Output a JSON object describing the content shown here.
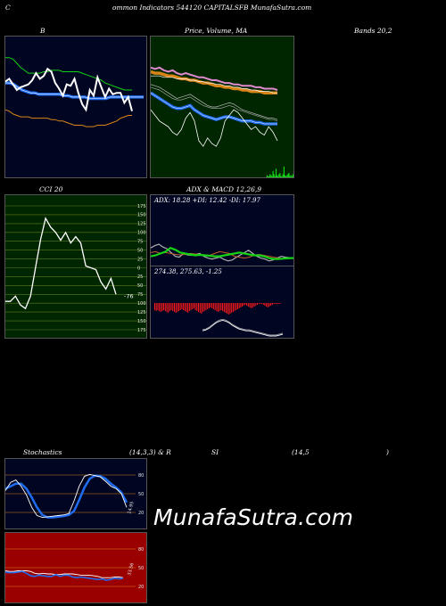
{
  "header": {
    "title_left": "C",
    "title_main": "ommon  Indicators 544120  CAPITALSFB MunafaSutra.com"
  },
  "watermark": "MunafaSutra.com",
  "titles": {
    "bollinger_b": "B",
    "price_volume": "Price,  Volume,  MA",
    "bands": "Bands 20,2",
    "cci": "CCI 20",
    "adx_macd": "ADX  & MACD 12,26,9",
    "stoch_a": "Stochastics",
    "stoch_b": "(14,3,3) & R",
    "rsi_a": "SI",
    "rsi_b": "(14,5",
    "rsi_c": ")"
  },
  "colors": {
    "navy": "#000522",
    "green_panel": "#002600",
    "grid_green": "#5e7a1d",
    "red_panel": "#9b0000",
    "blue": "#1f6cf0",
    "orange": "#d88416",
    "green_line": "#14d314",
    "white": "#ffffff"
  },
  "chart_data": [
    {
      "id": "bollinger",
      "type": "line",
      "title": "B",
      "series": [
        {
          "values": [
            68,
            70,
            66,
            62,
            64,
            65,
            66,
            69,
            74,
            70,
            72,
            77,
            75,
            67,
            63,
            58,
            66,
            65,
            70,
            60,
            52,
            48,
            62,
            58,
            71,
            64,
            57,
            63,
            59,
            60,
            60,
            53,
            57,
            47
          ]
        },
        {
          "values": [
            85,
            85,
            84,
            81,
            78,
            76,
            74,
            74,
            74,
            74,
            75,
            75,
            76,
            76,
            76,
            75,
            75,
            75,
            75,
            75,
            74,
            73,
            72,
            71,
            70,
            69,
            67,
            66,
            65,
            64,
            63,
            62,
            62,
            62
          ]
        },
        {
          "values": [
            67,
            67,
            66,
            64,
            62,
            61,
            60,
            60,
            59,
            59,
            59,
            59,
            59,
            59,
            58,
            58,
            57,
            57,
            57,
            57,
            56,
            56,
            56,
            56,
            56,
            57,
            57,
            57,
            57,
            57,
            57,
            57,
            57,
            57
          ]
        },
        {
          "values": [
            48,
            47,
            45,
            44,
            43,
            43,
            43,
            42,
            42,
            42,
            42,
            42,
            41,
            41,
            40,
            40,
            39,
            38,
            37,
            37,
            37,
            36,
            36,
            36,
            37,
            37,
            37,
            38,
            39,
            40,
            42,
            43,
            44,
            44
          ]
        }
      ]
    },
    {
      "id": "price_ma",
      "type": "line",
      "title": "Price,  Volume,  MA",
      "series": [
        {
          "values": [
            78,
            77,
            78,
            76,
            75,
            76,
            74,
            73,
            74,
            73,
            72,
            71,
            71,
            70,
            69,
            69,
            68,
            67,
            67,
            66,
            66,
            65,
            65,
            65,
            64,
            64,
            63,
            63,
            63,
            62
          ]
        },
        {
          "values": [
            75,
            74,
            74,
            73,
            72,
            72,
            71,
            70,
            70,
            69,
            69,
            68,
            67,
            67,
            66,
            65,
            65,
            64,
            64,
            63,
            63,
            62,
            62,
            61,
            61,
            61,
            60,
            60,
            60,
            60
          ]
        },
        {
          "values": [
            72,
            72,
            72,
            71,
            71,
            71,
            70,
            70,
            70,
            69,
            69,
            68,
            68,
            67,
            67,
            66,
            66,
            65,
            65,
            64,
            64,
            63,
            63,
            62,
            62,
            61,
            61,
            61,
            60,
            60
          ]
        },
        {
          "values": [
            60,
            58,
            56,
            54,
            52,
            50,
            49,
            49,
            50,
            51,
            48,
            46,
            44,
            43,
            42,
            41,
            42,
            43,
            43,
            42,
            41,
            40,
            40,
            40,
            39,
            39,
            38,
            38,
            38,
            38
          ]
        },
        {
          "values": [
            48,
            44,
            40,
            38,
            36,
            32,
            30,
            34,
            42,
            46,
            40,
            26,
            22,
            28,
            24,
            22,
            28,
            40,
            44,
            48,
            46,
            42,
            38,
            34,
            36,
            32,
            30,
            36,
            32,
            26
          ]
        },
        {
          "values": [
            66,
            65,
            64,
            62,
            60,
            58,
            56,
            57,
            58,
            59,
            57,
            55,
            53,
            51,
            50,
            50,
            51,
            52,
            53,
            52,
            50,
            48,
            47,
            46,
            45,
            44,
            43,
            42,
            42,
            41
          ]
        },
        {
          "values": [
            64,
            63,
            62,
            60,
            58,
            56,
            55,
            55,
            56,
            57,
            55,
            53,
            51,
            50,
            49,
            49,
            49,
            50,
            51,
            50,
            48,
            47,
            46,
            45,
            44,
            43,
            42,
            41,
            41,
            40
          ]
        }
      ],
      "volume": [
        0,
        0,
        0,
        0,
        0,
        0,
        0,
        0,
        0,
        0,
        0,
        0,
        0,
        0,
        0,
        0,
        0,
        0,
        0,
        0,
        0,
        0,
        0,
        0,
        0,
        0,
        0,
        0,
        0,
        0,
        0,
        0,
        0,
        0,
        0,
        0,
        0,
        0,
        0,
        0,
        0,
        0,
        0,
        0,
        0,
        0,
        0,
        0,
        0,
        0,
        0,
        0,
        0,
        0,
        0,
        0,
        0,
        0,
        0,
        0,
        0,
        0,
        0,
        0,
        0,
        0,
        0,
        0,
        0,
        0,
        0,
        0,
        0,
        0,
        0,
        0,
        0,
        0,
        0,
        0,
        0,
        0,
        0,
        0,
        0,
        0,
        0,
        0,
        0,
        0,
        0,
        0,
        0,
        0,
        0,
        0,
        0,
        0,
        0,
        0,
        0,
        0,
        0,
        0,
        0,
        0,
        0,
        0,
        0,
        0,
        0,
        0,
        0,
        0,
        0,
        0,
        2,
        1,
        1,
        3,
        2,
        1,
        6,
        3,
        1,
        8,
        2,
        1,
        3,
        4,
        1,
        1,
        3,
        10,
        2,
        1,
        2,
        3,
        4,
        1,
        2,
        1,
        3
      ]
    },
    {
      "id": "cci",
      "type": "line",
      "title": "CCI 20",
      "ylim": [
        -175,
        175
      ],
      "y_ticks": [
        175,
        150,
        125,
        100,
        75,
        50,
        25,
        0,
        -25,
        -50,
        -75,
        -100,
        -125,
        -150,
        -175
      ],
      "y_tick_labels": [
        "175",
        "150",
        "125",
        "100",
        "75",
        "50",
        "25",
        "0",
        "25",
        "50",
        "75",
        "100",
        "125",
        "150",
        "175"
      ],
      "last_label": "-76",
      "series": [
        {
          "values": [
            -95,
            -95,
            -80,
            -105,
            -115,
            -80,
            0,
            80,
            140,
            115,
            100,
            78,
            100,
            70,
            88,
            70,
            5,
            0,
            -5,
            -40,
            -60,
            -30,
            -75
          ]
        }
      ]
    },
    {
      "id": "adx",
      "type": "line",
      "title": "ADX  & MACD 12,26,9",
      "label": "ADX: 18.28  +DI: 12.42  -DI: 17.97",
      "series": [
        {
          "values": [
            40,
            45,
            48,
            42,
            38,
            30,
            22,
            20,
            28,
            25,
            24,
            26,
            28,
            22,
            18,
            16,
            18,
            20,
            15,
            12,
            14,
            20,
            25,
            30,
            35,
            28,
            22,
            18,
            16,
            12,
            14,
            18,
            22,
            20,
            19,
            18
          ]
        },
        {
          "values": [
            22,
            24,
            28,
            32,
            40,
            36,
            30,
            28,
            26,
            24,
            25,
            24,
            23,
            22,
            22,
            24,
            26,
            28,
            30,
            28,
            26,
            24,
            24,
            22,
            18,
            16,
            16,
            17,
            18,
            18
          ]
        },
        {
          "values": [
            30,
            32,
            28,
            30,
            28,
            26,
            25,
            26,
            28,
            27,
            26,
            25,
            24,
            28,
            32,
            30,
            28,
            22,
            20,
            18,
            20,
            24,
            26,
            24,
            22,
            20,
            18,
            17,
            17,
            18
          ]
        }
      ]
    },
    {
      "id": "macd",
      "type": "bar",
      "label": "274.38,  275.63,  -1.25",
      "series": [
        {
          "values": [
            8,
            9,
            8,
            9,
            10,
            9,
            8,
            9,
            10,
            11,
            9,
            8,
            9,
            10,
            11,
            10,
            9,
            8,
            7,
            8,
            9,
            10,
            11,
            9,
            8,
            7,
            6,
            8,
            9,
            10,
            11,
            12,
            10,
            9,
            8,
            7,
            6,
            5,
            6,
            7,
            8,
            9,
            10,
            9,
            8,
            9,
            10,
            11,
            12,
            13,
            12,
            11,
            10,
            9,
            8,
            7,
            6,
            5,
            4,
            3,
            2,
            3,
            4,
            5,
            6,
            5,
            4,
            3,
            2,
            1,
            1,
            1,
            2,
            3,
            4,
            5,
            4,
            3,
            2,
            1,
            1,
            1,
            1,
            1
          ]
        }
      ]
    },
    {
      "id": "stochastics",
      "type": "line",
      "title": "Stochastics",
      "ylim": [
        0,
        100
      ],
      "y_ticks": [
        80,
        50,
        20
      ],
      "last_label": "14.95",
      "series": [
        {
          "values": [
            55,
            68,
            72,
            62,
            48,
            28,
            15,
            12,
            13,
            14,
            15,
            16,
            18,
            38,
            62,
            78,
            81,
            79,
            77,
            70,
            62,
            58,
            50,
            28
          ]
        },
        {
          "values": [
            58,
            62,
            66,
            66,
            58,
            44,
            28,
            16,
            12,
            12,
            13,
            14,
            16,
            22,
            40,
            60,
            74,
            79,
            78,
            74,
            66,
            60,
            52,
            36
          ]
        }
      ]
    },
    {
      "id": "rsi",
      "type": "line",
      "title": "SI",
      "ylim": [
        0,
        100
      ],
      "y_ticks": [
        80,
        50,
        20
      ],
      "last_label": "33.56",
      "series": [
        {
          "values": [
            45,
            44,
            44,
            45,
            45,
            45,
            44,
            41,
            40,
            41,
            40,
            40,
            39,
            39,
            40,
            40,
            40,
            39,
            38,
            38,
            38,
            37,
            36,
            34,
            34,
            34,
            35,
            35,
            34
          ]
        },
        {
          "values": [
            43,
            42,
            42,
            43,
            44,
            41,
            37,
            36,
            38,
            37,
            36,
            36,
            39,
            36,
            38,
            38,
            35,
            34,
            35,
            34,
            33,
            32,
            31,
            32,
            30,
            31,
            33,
            32,
            33
          ]
        }
      ]
    }
  ]
}
